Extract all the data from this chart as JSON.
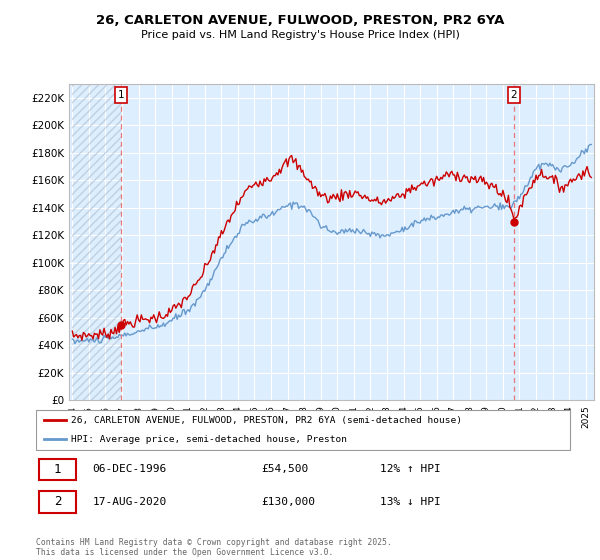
{
  "title": "26, CARLETON AVENUE, FULWOOD, PRESTON, PR2 6YA",
  "subtitle": "Price paid vs. HM Land Registry's House Price Index (HPI)",
  "red_line_color": "#cc0000",
  "blue_line_color": "#6699cc",
  "dashed_line_color": "#e87878",
  "bg_color": "#ddeeff",
  "hatch_color": "#bbccdd",
  "legend_label_red": "26, CARLETON AVENUE, FULWOOD, PRESTON, PR2 6YA (semi-detached house)",
  "legend_label_blue": "HPI: Average price, semi-detached house, Preston",
  "annotation1_date": "06-DEC-1996",
  "annotation1_price": "£54,500",
  "annotation1_hpi": "12% ↑ HPI",
  "annotation2_date": "17-AUG-2020",
  "annotation2_price": "£130,000",
  "annotation2_hpi": "13% ↓ HPI",
  "footer": "Contains HM Land Registry data © Crown copyright and database right 2025.\nThis data is licensed under the Open Government Licence v3.0.",
  "ann1_x": 1996.92,
  "ann1_y": 54500,
  "ann2_x": 2020.67,
  "ann2_y": 130000,
  "ylim": [
    0,
    230000
  ],
  "yticks": [
    0,
    20000,
    40000,
    60000,
    80000,
    100000,
    120000,
    140000,
    160000,
    180000,
    200000,
    220000
  ],
  "ytick_labels": [
    "£0",
    "£20K",
    "£40K",
    "£60K",
    "£80K",
    "£100K",
    "£120K",
    "£140K",
    "£160K",
    "£180K",
    "£200K",
    "£220K"
  ],
  "xmin": 1994.0,
  "xmax": 2025.5
}
